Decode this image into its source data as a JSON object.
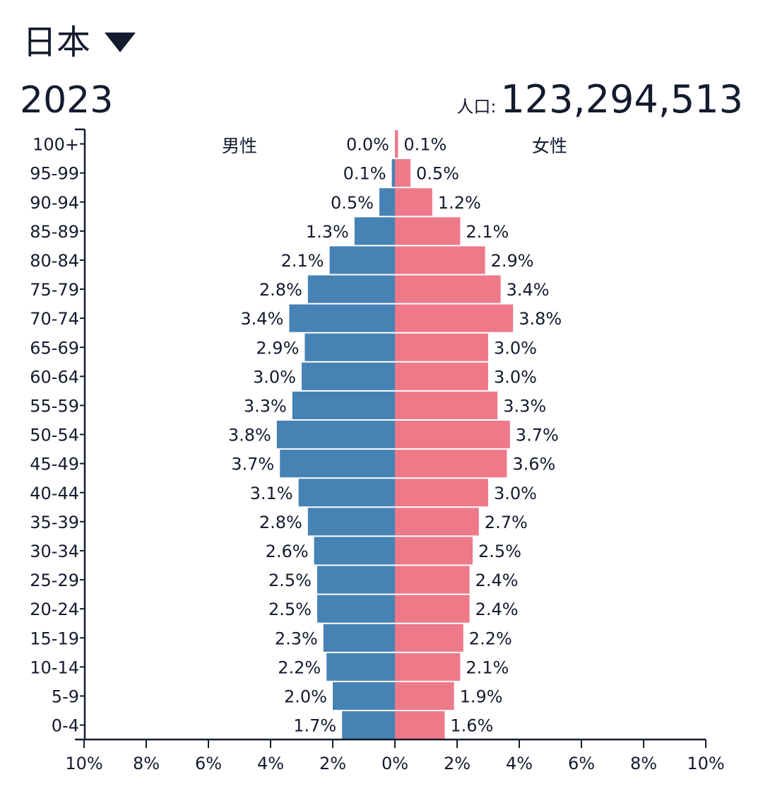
{
  "header": {
    "country": "日本",
    "dropdown_icon": "triangle-down-icon",
    "year": "2023",
    "population_label": "人口:",
    "population_value": "123,294,513"
  },
  "chart_data": {
    "type": "bar",
    "orientation": "horizontal",
    "subtype": "population-pyramid",
    "categories": [
      "100+",
      "95-99",
      "90-94",
      "85-89",
      "80-84",
      "75-79",
      "70-74",
      "65-69",
      "60-64",
      "55-59",
      "50-54",
      "45-49",
      "40-44",
      "35-39",
      "30-34",
      "25-29",
      "20-24",
      "15-19",
      "10-14",
      "5-9",
      "0-4"
    ],
    "series": [
      {
        "name": "男性",
        "color": "#4682b4",
        "values": [
          0.0,
          0.1,
          0.5,
          1.3,
          2.1,
          2.8,
          3.4,
          2.9,
          3.0,
          3.3,
          3.8,
          3.7,
          3.1,
          2.8,
          2.6,
          2.5,
          2.5,
          2.3,
          2.2,
          2.0,
          1.7
        ],
        "labels": [
          "0.0%",
          "0.1%",
          "0.5%",
          "1.3%",
          "2.1%",
          "2.8%",
          "3.4%",
          "2.9%",
          "3.0%",
          "3.3%",
          "3.8%",
          "3.7%",
          "3.1%",
          "2.8%",
          "2.6%",
          "2.5%",
          "2.5%",
          "2.3%",
          "2.2%",
          "2.0%",
          "1.7%"
        ]
      },
      {
        "name": "女性",
        "color": "#ee7989",
        "values": [
          0.1,
          0.5,
          1.2,
          2.1,
          2.9,
          3.4,
          3.8,
          3.0,
          3.0,
          3.3,
          3.7,
          3.6,
          3.0,
          2.7,
          2.5,
          2.4,
          2.4,
          2.2,
          2.1,
          1.9,
          1.6
        ],
        "labels": [
          "0.1%",
          "0.5%",
          "1.2%",
          "2.1%",
          "2.9%",
          "3.4%",
          "3.8%",
          "3.0%",
          "3.0%",
          "3.3%",
          "3.7%",
          "3.6%",
          "3.0%",
          "2.7%",
          "2.5%",
          "2.4%",
          "2.4%",
          "2.2%",
          "2.1%",
          "1.9%",
          "1.6%"
        ]
      }
    ],
    "xlim": [
      -10,
      10
    ],
    "xticks": [
      -10,
      -8,
      -6,
      -4,
      -2,
      0,
      2,
      4,
      6,
      8,
      10
    ],
    "xtick_labels": [
      "10%",
      "8%",
      "6%",
      "4%",
      "2%",
      "0%",
      "2%",
      "4%",
      "6%",
      "8%",
      "10%"
    ],
    "grid": false
  }
}
